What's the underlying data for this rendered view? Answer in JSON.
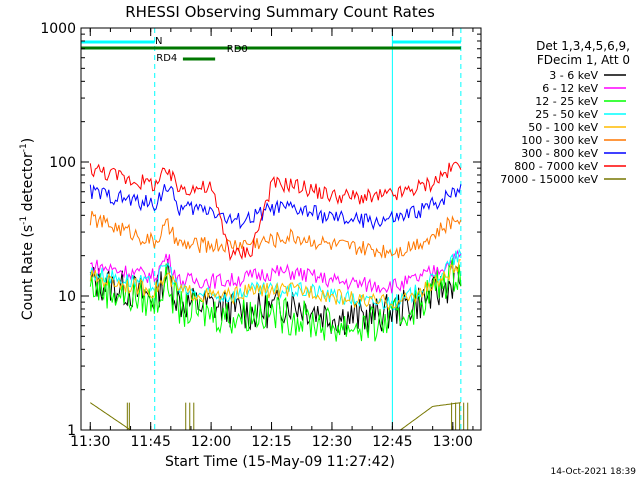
{
  "chart_data": {
    "type": "line",
    "title": "RHESSI Observing Summary Count Rates",
    "xlabel": "Start Time (15-May-09 11:27:42)",
    "ylabel_main": "Count Rate (s",
    "ylabel_sup1": "-1",
    "ylabel_mid": " detector",
    "ylabel_sup2": "-1",
    "ylabel_end": ")",
    "y_scale": "log",
    "ylim": [
      1,
      1000
    ],
    "xlim": [
      "11:27:42",
      "13:07:00"
    ],
    "x_ticks": [
      "11:30",
      "11:45",
      "12:00",
      "12:15",
      "12:30",
      "12:45",
      "13:00"
    ],
    "y_ticks": [
      "1",
      "10",
      "100",
      "1000"
    ],
    "legend_header": [
      "Det 1,3,4,5,6,9,",
      "FDecim 1, Att 0"
    ],
    "footer": "14-Oct-2021 18:39",
    "flags": {
      "night": {
        "label": "N",
        "intervals": [
          [
            "11:27:42",
            "11:46:00"
          ],
          [
            "12:45:00",
            "13:02:00"
          ]
        ],
        "color": "#00ffff"
      },
      "rd0": {
        "label": "RD0",
        "intervals": [
          [
            "11:27:42",
            "12:05:00"
          ],
          [
            "12:06:00",
            "13:02:00"
          ]
        ],
        "color": "#007700"
      },
      "rd4": {
        "label": "RD4",
        "intervals": [
          [
            "11:53:00",
            "12:01:00"
          ]
        ],
        "color": "#007700"
      }
    },
    "night_lines": [
      "11:27:42",
      "11:46:00",
      "12:45:00",
      "13:02:00"
    ],
    "series": [
      {
        "name": "3 - 6 keV",
        "color": "#000000",
        "x": [
          "11:30",
          "11:40",
          "11:46",
          "11:49",
          "11:52",
          "12:00",
          "12:05",
          "12:10",
          "12:15",
          "12:20",
          "12:25",
          "12:30",
          "12:40",
          "12:47",
          "12:55",
          "13:02"
        ],
        "y": [
          13,
          11,
          9.5,
          15,
          9,
          8.5,
          8,
          7.5,
          8,
          9,
          8,
          7,
          7,
          8,
          10,
          14
        ]
      },
      {
        "name": "6 - 12 keV",
        "color": "#ff00ff",
        "x": [
          "11:30",
          "11:40",
          "11:46",
          "11:49",
          "11:52",
          "12:00",
          "12:05",
          "12:10",
          "12:15",
          "12:20",
          "12:25",
          "12:30",
          "12:40",
          "12:47",
          "12:55",
          "13:02"
        ],
        "y": [
          17,
          15,
          14,
          20,
          13,
          13,
          13,
          14,
          15,
          15,
          14,
          13,
          12,
          12,
          15,
          20
        ]
      },
      {
        "name": "12 - 25 keV",
        "color": "#00ff00",
        "x": [
          "11:30",
          "11:40",
          "11:46",
          "11:49",
          "11:52",
          "12:00",
          "12:05",
          "12:10",
          "12:15",
          "12:20",
          "12:25",
          "12:30",
          "12:40",
          "12:47",
          "12:55",
          "13:02"
        ],
        "y": [
          12,
          10,
          9,
          13,
          8,
          7.5,
          7,
          7.5,
          7.5,
          7,
          6.5,
          6,
          6,
          7,
          11,
          16
        ]
      },
      {
        "name": "25 - 50 keV",
        "color": "#00ffff",
        "x": [
          "11:30",
          "11:40",
          "11:46",
          "11:49",
          "11:52",
          "12:00",
          "12:05",
          "12:10",
          "12:15",
          "12:20",
          "12:25",
          "12:30",
          "12:40",
          "12:47",
          "12:55",
          "13:02"
        ],
        "y": [
          15,
          13,
          12,
          18,
          11,
          10,
          10,
          11,
          11,
          11,
          11,
          10,
          9,
          9,
          13,
          21
        ]
      },
      {
        "name": "50 - 100 keV",
        "color": "#ffbb00",
        "x": [
          "11:30",
          "11:40",
          "11:46",
          "11:49",
          "11:52",
          "12:00",
          "12:05",
          "12:10",
          "12:15",
          "12:20",
          "12:25",
          "12:30",
          "12:40",
          "12:47",
          "12:55",
          "13:02"
        ],
        "y": [
          14,
          12,
          11,
          14,
          11,
          10,
          10,
          11,
          11,
          11,
          11,
          10,
          9,
          9,
          12,
          17
        ]
      },
      {
        "name": "100 - 300 keV",
        "color": "#ff7700",
        "x": [
          "11:30",
          "11:40",
          "11:46",
          "11:49",
          "11:52",
          "12:00",
          "12:05",
          "12:10",
          "12:15",
          "12:20",
          "12:25",
          "12:30",
          "12:40",
          "12:47",
          "12:55",
          "13:02"
        ],
        "y": [
          38,
          30,
          25,
          34,
          24,
          24,
          24,
          25,
          26,
          28,
          26,
          24,
          22,
          22,
          28,
          40
        ]
      },
      {
        "name": "300 - 800 keV",
        "color": "#0000ff",
        "x": [
          "11:30",
          "11:40",
          "11:46",
          "11:49",
          "11:52",
          "12:00",
          "12:05",
          "12:10",
          "12:15",
          "12:20",
          "12:25",
          "12:30",
          "12:40",
          "12:47",
          "12:55",
          "13:02"
        ],
        "y": [
          60,
          52,
          48,
          68,
          45,
          45,
          36,
          38,
          45,
          45,
          42,
          38,
          36,
          38,
          48,
          66
        ]
      },
      {
        "name": "800 - 7000 keV",
        "color": "#ff0000",
        "x": [
          "11:30",
          "11:40",
          "11:46",
          "11:49",
          "11:52",
          "12:00",
          "12:05",
          "12:10",
          "12:15",
          "12:20",
          "12:25",
          "12:30",
          "12:40",
          "12:47",
          "12:55",
          "13:02"
        ],
        "y": [
          90,
          74,
          68,
          85,
          64,
          64,
          20,
          22,
          68,
          68,
          62,
          56,
          54,
          58,
          70,
          100
        ]
      },
      {
        "name": "7000 - 15000 keV",
        "color": "#777700",
        "x": [
          "11:30",
          "11:40",
          "11:46",
          "11:49",
          "11:52",
          "12:00",
          "12:05",
          "12:10",
          "12:15",
          "12:20",
          "12:25",
          "12:30",
          "12:40",
          "12:47",
          "12:55",
          "13:02"
        ],
        "y": [
          1.6,
          1,
          1,
          1,
          1,
          1,
          1,
          1,
          1,
          1,
          1,
          1,
          1,
          1,
          1.5,
          1.6
        ]
      }
    ]
  }
}
